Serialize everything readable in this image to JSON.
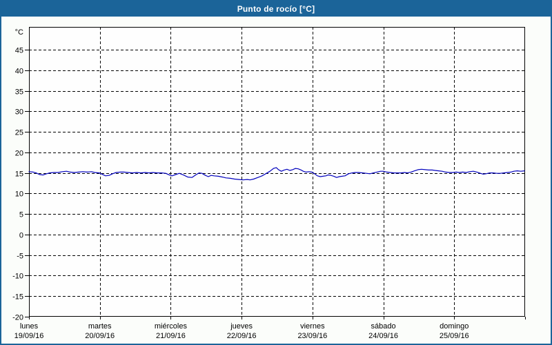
{
  "window": {
    "title": "Punto de rocío [°C]"
  },
  "colors": {
    "accent_blue": "#1b6499",
    "line_blue": "#0000bd",
    "background": "#fbfdfa",
    "plot_background": "#fefefe",
    "grid_color": "#000000",
    "title_text": "#ffffff"
  },
  "chart_data": {
    "type": "line",
    "title": "Punto de rocío [°C]",
    "ylabel": "°C",
    "ylim": [
      -20,
      50
    ],
    "yticks": [
      45,
      40,
      35,
      30,
      25,
      20,
      15,
      10,
      5,
      0,
      -5,
      -10,
      -15,
      -20
    ],
    "xlim_days": [
      0,
      7
    ],
    "grid": "dashed",
    "legend": "none",
    "days": [
      {
        "weekday": "lunes",
        "date": "19/09/16"
      },
      {
        "weekday": "martes",
        "date": "20/09/16"
      },
      {
        "weekday": "miércoles",
        "date": "21/09/16"
      },
      {
        "weekday": "jueves",
        "date": "22/09/16"
      },
      {
        "weekday": "viernes",
        "date": "23/09/16"
      },
      {
        "weekday": "sábado",
        "date": "24/09/16"
      },
      {
        "weekday": "domingo",
        "date": "25/09/16"
      }
    ],
    "series": [
      {
        "name": "Punto de rocío",
        "unit": "°C",
        "color": "#0000bd",
        "points": [
          [
            0,
            15.3
          ],
          [
            0.06,
            15.2
          ],
          [
            0.1,
            15.0
          ],
          [
            0.15,
            14.6
          ],
          [
            0.2,
            14.5
          ],
          [
            0.23,
            14.7
          ],
          [
            0.29,
            15.0
          ],
          [
            0.35,
            15.1
          ],
          [
            0.41,
            15.1
          ],
          [
            0.47,
            15.3
          ],
          [
            0.53,
            15.4
          ],
          [
            0.58,
            15.2
          ],
          [
            0.64,
            15.1
          ],
          [
            0.7,
            15.2
          ],
          [
            0.76,
            15.3
          ],
          [
            0.82,
            15.2
          ],
          [
            0.88,
            15.3
          ],
          [
            0.93,
            15.1
          ],
          [
            0.99,
            15.0
          ],
          [
            1.03,
            14.7
          ],
          [
            1.08,
            14.3
          ],
          [
            1.13,
            14.4
          ],
          [
            1.18,
            14.8
          ],
          [
            1.23,
            15.1
          ],
          [
            1.29,
            15.2
          ],
          [
            1.34,
            15.2
          ],
          [
            1.4,
            15.1
          ],
          [
            1.46,
            15.0
          ],
          [
            1.52,
            15.1
          ],
          [
            1.58,
            15.0
          ],
          [
            1.64,
            15.1
          ],
          [
            1.69,
            15.0
          ],
          [
            1.75,
            15.1
          ],
          [
            1.81,
            15.0
          ],
          [
            1.87,
            15.0
          ],
          [
            1.93,
            14.9
          ],
          [
            1.98,
            14.5
          ],
          [
            2.02,
            14.3
          ],
          [
            2.07,
            14.6
          ],
          [
            2.12,
            14.9
          ],
          [
            2.18,
            14.5
          ],
          [
            2.24,
            14.0
          ],
          [
            2.3,
            13.9
          ],
          [
            2.36,
            14.6
          ],
          [
            2.4,
            15.0
          ],
          [
            2.44,
            14.9
          ],
          [
            2.49,
            14.4
          ],
          [
            2.53,
            14.1
          ],
          [
            2.57,
            14.4
          ],
          [
            2.61,
            14.3
          ],
          [
            2.67,
            14.2
          ],
          [
            2.73,
            14.0
          ],
          [
            2.78,
            13.8
          ],
          [
            2.84,
            13.7
          ],
          [
            2.9,
            13.5
          ],
          [
            2.96,
            13.4
          ],
          [
            3.02,
            13.3
          ],
          [
            3.08,
            13.4
          ],
          [
            3.12,
            13.3
          ],
          [
            3.17,
            13.5
          ],
          [
            3.23,
            13.9
          ],
          [
            3.29,
            14.3
          ],
          [
            3.35,
            14.9
          ],
          [
            3.4,
            15.4
          ],
          [
            3.45,
            16.1
          ],
          [
            3.49,
            16.3
          ],
          [
            3.52,
            15.8
          ],
          [
            3.56,
            15.4
          ],
          [
            3.6,
            15.7
          ],
          [
            3.64,
            15.9
          ],
          [
            3.68,
            15.6
          ],
          [
            3.72,
            15.8
          ],
          [
            3.76,
            16.1
          ],
          [
            3.8,
            16.0
          ],
          [
            3.84,
            15.7
          ],
          [
            3.87,
            15.4
          ],
          [
            3.91,
            15.2
          ],
          [
            3.95,
            15.3
          ],
          [
            3.99,
            15.2
          ],
          [
            4.03,
            14.8
          ],
          [
            4.07,
            14.3
          ],
          [
            4.11,
            14.1
          ],
          [
            4.15,
            14.2
          ],
          [
            4.19,
            14.3
          ],
          [
            4.22,
            14.5
          ],
          [
            4.26,
            14.4
          ],
          [
            4.3,
            14.2
          ],
          [
            4.34,
            13.9
          ],
          [
            4.38,
            14.1
          ],
          [
            4.42,
            14.2
          ],
          [
            4.46,
            14.3
          ],
          [
            4.51,
            14.8
          ],
          [
            4.56,
            15.0
          ],
          [
            4.6,
            15.1
          ],
          [
            4.65,
            15.1
          ],
          [
            4.71,
            15.0
          ],
          [
            4.76,
            14.9
          ],
          [
            4.81,
            14.8
          ],
          [
            4.86,
            15.0
          ],
          [
            4.91,
            15.2
          ],
          [
            4.96,
            15.4
          ],
          [
            5.0,
            15.4
          ],
          [
            5.05,
            15.2
          ],
          [
            5.1,
            15.1
          ],
          [
            5.15,
            15.0
          ],
          [
            5.2,
            15.0
          ],
          [
            5.25,
            15.0
          ],
          [
            5.3,
            15.1
          ],
          [
            5.34,
            15.0
          ],
          [
            5.39,
            15.2
          ],
          [
            5.44,
            15.5
          ],
          [
            5.49,
            15.8
          ],
          [
            5.54,
            15.9
          ],
          [
            5.59,
            15.8
          ],
          [
            5.64,
            15.7
          ],
          [
            5.69,
            15.7
          ],
          [
            5.73,
            15.6
          ],
          [
            5.78,
            15.5
          ],
          [
            5.83,
            15.4
          ],
          [
            5.88,
            15.2
          ],
          [
            5.93,
            15.1
          ],
          [
            5.98,
            15.1
          ],
          [
            6.03,
            15.2
          ],
          [
            6.07,
            15.1
          ],
          [
            6.12,
            15.2
          ],
          [
            6.17,
            15.1
          ],
          [
            6.22,
            15.3
          ],
          [
            6.27,
            15.4
          ],
          [
            6.32,
            15.2
          ],
          [
            6.37,
            14.9
          ],
          [
            6.41,
            14.7
          ],
          [
            6.45,
            14.8
          ],
          [
            6.5,
            15.0
          ],
          [
            6.55,
            15.0
          ],
          [
            6.6,
            14.9
          ],
          [
            6.65,
            14.9
          ],
          [
            6.7,
            15.0
          ],
          [
            6.75,
            15.1
          ],
          [
            6.8,
            15.2
          ],
          [
            6.84,
            15.4
          ],
          [
            6.89,
            15.5
          ],
          [
            6.94,
            15.4
          ],
          [
            6.99,
            15.5
          ]
        ]
      }
    ]
  }
}
